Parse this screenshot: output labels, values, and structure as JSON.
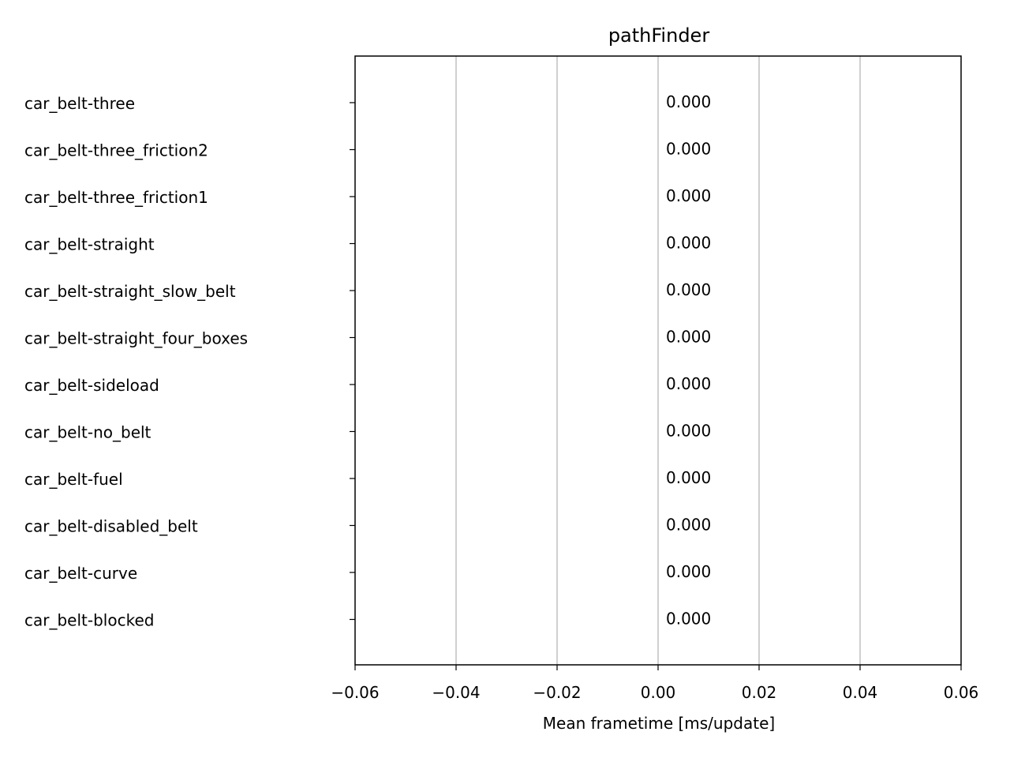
{
  "chart_data": {
    "type": "bar",
    "orientation": "horizontal",
    "title": "pathFinder",
    "xlabel": "Mean frametime [ms/update]",
    "ylabel": "",
    "xlim": [
      -0.06,
      0.06
    ],
    "xticks": [
      -0.06,
      -0.04,
      -0.02,
      0.0,
      0.02,
      0.04,
      0.06
    ],
    "xtick_labels": [
      "−0.06",
      "−0.04",
      "−0.02",
      "0.00",
      "0.02",
      "0.04",
      "0.06"
    ],
    "grid": "x",
    "categories": [
      "car_belt-three",
      "car_belt-three_friction2",
      "car_belt-three_friction1",
      "car_belt-straight",
      "car_belt-straight_slow_belt",
      "car_belt-straight_four_boxes",
      "car_belt-sideload",
      "car_belt-no_belt",
      "car_belt-fuel",
      "car_belt-disabled_belt",
      "car_belt-curve",
      "car_belt-blocked"
    ],
    "values": [
      0,
      0,
      0,
      0,
      0,
      0,
      0,
      0,
      0,
      0,
      0,
      0
    ],
    "value_labels": [
      "0.000",
      "0.000",
      "0.000",
      "0.000",
      "0.000",
      "0.000",
      "0.000",
      "0.000",
      "0.000",
      "0.000",
      "0.000",
      "0.000"
    ],
    "colors": {
      "grid": "#b0b0b0",
      "axis": "#000000",
      "bar": "#1f77b4",
      "background": "#ffffff"
    }
  }
}
